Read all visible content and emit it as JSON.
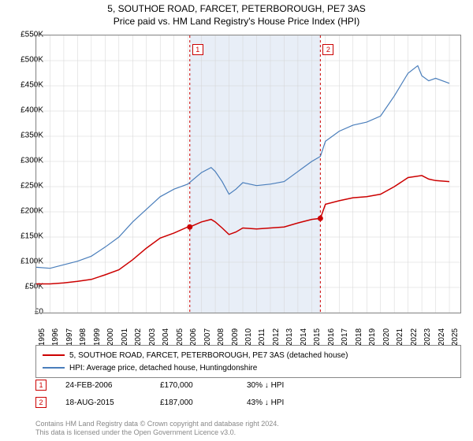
{
  "title": "5, SOUTHOE ROAD, FARCET, PETERBOROUGH, PE7 3AS",
  "subtitle": "Price paid vs. HM Land Registry's House Price Index (HPI)",
  "chart": {
    "type": "line",
    "background_color": "#ffffff",
    "border_color": "#888888",
    "grid_color": "#d3d3d3",
    "highlight_band": {
      "x_start": 2006.15,
      "x_end": 2015.63,
      "fill": "#e8eef7"
    },
    "xlim": [
      1995,
      2025.8
    ],
    "ylim": [
      0,
      550000
    ],
    "ytick_step": 50000,
    "y_ticks": [
      "£0",
      "£50K",
      "£100K",
      "£150K",
      "£200K",
      "£250K",
      "£300K",
      "£350K",
      "£400K",
      "£450K",
      "£500K",
      "£550K"
    ],
    "x_ticks": [
      "1995",
      "1996",
      "1997",
      "1998",
      "1999",
      "2000",
      "2001",
      "2002",
      "2003",
      "2004",
      "2005",
      "2006",
      "2007",
      "2008",
      "2009",
      "2010",
      "2011",
      "2012",
      "2013",
      "2014",
      "2015",
      "2016",
      "2017",
      "2018",
      "2019",
      "2020",
      "2021",
      "2022",
      "2023",
      "2024",
      "2025"
    ],
    "series": [
      {
        "name": "property",
        "label": "5, SOUTHOE ROAD, FARCET, PETERBOROUGH, PE7 3AS (detached house)",
        "color": "#cc0000",
        "line_width": 1.5,
        "data": [
          [
            1995,
            57000
          ],
          [
            1996,
            57000
          ],
          [
            1997,
            59000
          ],
          [
            1998,
            62000
          ],
          [
            1999,
            66000
          ],
          [
            2000,
            75000
          ],
          [
            2001,
            85000
          ],
          [
            2002,
            105000
          ],
          [
            2003,
            128000
          ],
          [
            2004,
            148000
          ],
          [
            2005,
            158000
          ],
          [
            2006,
            170000
          ],
          [
            2006.15,
            170000
          ],
          [
            2007,
            180000
          ],
          [
            2007.7,
            185000
          ],
          [
            2008,
            180000
          ],
          [
            2008.5,
            168000
          ],
          [
            2009,
            155000
          ],
          [
            2009.5,
            160000
          ],
          [
            2010,
            168000
          ],
          [
            2011,
            166000
          ],
          [
            2012,
            168000
          ],
          [
            2013,
            170000
          ],
          [
            2014,
            178000
          ],
          [
            2015,
            185000
          ],
          [
            2015.63,
            187000
          ],
          [
            2016,
            215000
          ],
          [
            2017,
            222000
          ],
          [
            2018,
            228000
          ],
          [
            2019,
            230000
          ],
          [
            2020,
            235000
          ],
          [
            2021,
            250000
          ],
          [
            2022,
            268000
          ],
          [
            2023,
            272000
          ],
          [
            2023.5,
            265000
          ],
          [
            2024,
            262000
          ],
          [
            2025,
            260000
          ]
        ]
      },
      {
        "name": "hpi",
        "label": "HPI: Average price, detached house, Huntingdonshire",
        "color": "#4a7ebb",
        "line_width": 1.2,
        "data": [
          [
            1995,
            90000
          ],
          [
            1996,
            88000
          ],
          [
            1997,
            95000
          ],
          [
            1998,
            102000
          ],
          [
            1999,
            112000
          ],
          [
            2000,
            130000
          ],
          [
            2001,
            150000
          ],
          [
            2002,
            180000
          ],
          [
            2003,
            205000
          ],
          [
            2004,
            230000
          ],
          [
            2005,
            245000
          ],
          [
            2006,
            255000
          ],
          [
            2007,
            278000
          ],
          [
            2007.7,
            288000
          ],
          [
            2008,
            280000
          ],
          [
            2008.5,
            260000
          ],
          [
            2009,
            235000
          ],
          [
            2009.5,
            245000
          ],
          [
            2010,
            258000
          ],
          [
            2011,
            252000
          ],
          [
            2012,
            255000
          ],
          [
            2013,
            260000
          ],
          [
            2014,
            280000
          ],
          [
            2015,
            300000
          ],
          [
            2015.63,
            310000
          ],
          [
            2016,
            340000
          ],
          [
            2017,
            360000
          ],
          [
            2018,
            372000
          ],
          [
            2019,
            378000
          ],
          [
            2020,
            390000
          ],
          [
            2021,
            430000
          ],
          [
            2022,
            475000
          ],
          [
            2022.7,
            490000
          ],
          [
            2023,
            470000
          ],
          [
            2023.5,
            460000
          ],
          [
            2024,
            465000
          ],
          [
            2025,
            455000
          ]
        ]
      }
    ],
    "transaction_markers": [
      {
        "n": "1",
        "x": 2006.15,
        "y": 170000,
        "line_color": "#cc0000",
        "dot_color": "#cc0000"
      },
      {
        "n": "2",
        "x": 2015.63,
        "y": 187000,
        "line_color": "#cc0000",
        "dot_color": "#cc0000"
      }
    ],
    "label_fontsize": 10,
    "title_fontsize": 12
  },
  "legend": {
    "border_color": "#888888",
    "items": [
      {
        "color": "#cc0000",
        "label": "5, SOUTHOE ROAD, FARCET, PETERBOROUGH, PE7 3AS (detached house)"
      },
      {
        "color": "#4a7ebb",
        "label": "HPI: Average price, detached house, Huntingdonshire"
      }
    ]
  },
  "transactions": [
    {
      "n": "1",
      "badge_color": "#cc0000",
      "date": "24-FEB-2006",
      "price": "£170,000",
      "diff": "30% ↓ HPI"
    },
    {
      "n": "2",
      "badge_color": "#cc0000",
      "date": "18-AUG-2015",
      "price": "£187,000",
      "diff": "43% ↓ HPI"
    }
  ],
  "footer": {
    "line1": "Contains HM Land Registry data © Crown copyright and database right 2024.",
    "line2": "This data is licensed under the Open Government Licence v3.0.",
    "color": "#888888"
  }
}
